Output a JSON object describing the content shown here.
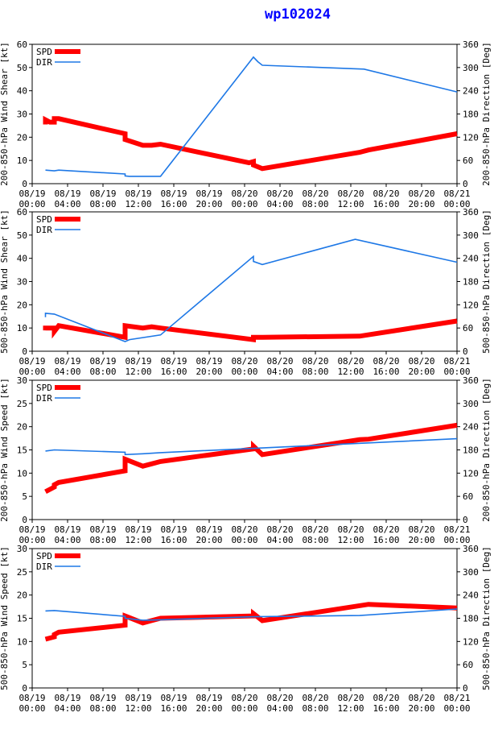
{
  "title": "wp102024",
  "x_ticks": [
    [
      "08/19",
      "00:00"
    ],
    [
      "08/19",
      "04:00"
    ],
    [
      "08/19",
      "08:00"
    ],
    [
      "08/19",
      "12:00"
    ],
    [
      "08/19",
      "16:00"
    ],
    [
      "08/19",
      "20:00"
    ],
    [
      "08/20",
      "00:00"
    ],
    [
      "08/20",
      "04:00"
    ],
    [
      "08/20",
      "08:00"
    ],
    [
      "08/20",
      "12:00"
    ],
    [
      "08/20",
      "16:00"
    ],
    [
      "08/20",
      "20:00"
    ],
    [
      "08/21",
      "00:00"
    ]
  ],
  "colors": {
    "spd": "#ff0000",
    "dir": "#1e78e6",
    "title": "#0000ff"
  },
  "chart_data": [
    {
      "type": "line",
      "ylabel_left": "200-850-hPa Wind Shear [kt]",
      "ylabel_right": "200-850-hPa Direction [Deg]",
      "ylim_left": [
        0,
        60
      ],
      "yticks_left": [
        0,
        10,
        20,
        30,
        40,
        50,
        60
      ],
      "ylim_right": [
        0,
        360
      ],
      "yticks_right": [
        0,
        60,
        120,
        180,
        240,
        300,
        360
      ],
      "xlim_hours": [
        0,
        48
      ],
      "legend": [
        "SPD",
        "DIR"
      ],
      "series": [
        {
          "name": "SPD",
          "axis": "left",
          "x": [
            1.5,
            1.5,
            2.0,
            2.5,
            2.5,
            3.0,
            10.5,
            10.5,
            12.5,
            13.5,
            14.5,
            24.5,
            25.0,
            25.0,
            26.0,
            37.0,
            38.0,
            48.0
          ],
          "y": [
            25.5,
            27.5,
            26.5,
            26.5,
            28,
            28,
            21.5,
            19,
            16.5,
            16.5,
            17,
            9,
            9.5,
            8,
            6.5,
            13.5,
            14.5,
            21.5
          ]
        },
        {
          "name": "DIR",
          "axis": "right",
          "x": [
            1.5,
            2.5,
            3.0,
            10.5,
            10.5,
            11.0,
            14.5,
            25.0,
            25.5,
            26.0,
            37.5,
            48.0
          ],
          "y": [
            35,
            33,
            35,
            25,
            20,
            19,
            19,
            327,
            315,
            306,
            296,
            237
          ]
        }
      ]
    },
    {
      "type": "line",
      "ylabel_left": "500-850-hPa Wind Shear [kt]",
      "ylabel_right": "500-850-hPa Direction [Deg]",
      "ylim_left": [
        0,
        60
      ],
      "yticks_left": [
        0,
        10,
        20,
        30,
        40,
        50,
        60
      ],
      "ylim_right": [
        0,
        360
      ],
      "yticks_right": [
        0,
        60,
        120,
        180,
        240,
        300,
        360
      ],
      "xlim_hours": [
        0,
        48
      ],
      "legend": [
        "SPD",
        "DIR"
      ],
      "series": [
        {
          "name": "SPD",
          "axis": "left",
          "x": [
            1.5,
            1.5,
            2.5,
            2.5,
            3.0,
            10.5,
            10.5,
            12.5,
            13.5,
            14.5,
            25.0,
            25.0,
            26.0,
            37.0,
            48.0
          ],
          "y": [
            9,
            10,
            10,
            8.5,
            11,
            6,
            11,
            10,
            10.5,
            10,
            5,
            6,
            6,
            6.5,
            13
          ]
        },
        {
          "name": "DIR",
          "axis": "right",
          "x": [
            1.5,
            1.5,
            2.5,
            10.5,
            11.0,
            14.5,
            25.0,
            25.0,
            26.0,
            36.5,
            48.0
          ],
          "y": [
            88,
            98,
            96,
            25,
            30,
            42,
            245,
            232,
            224,
            289,
            230
          ]
        }
      ]
    },
    {
      "type": "line",
      "ylabel_left": "200-850-hPa Wind Speed [kt]",
      "ylabel_right": "200-850-hPa Direction [Deg]",
      "ylim_left": [
        0,
        30
      ],
      "yticks_left": [
        0,
        5,
        10,
        15,
        20,
        25,
        30
      ],
      "ylim_right": [
        0,
        360
      ],
      "yticks_right": [
        0,
        60,
        120,
        180,
        240,
        300,
        360
      ],
      "xlim_hours": [
        0,
        48
      ],
      "legend": [
        "SPD",
        "DIR"
      ],
      "series": [
        {
          "name": "SPD",
          "axis": "left",
          "x": [
            1.5,
            2.5,
            2.5,
            3.0,
            10.5,
            10.5,
            12.5,
            13.5,
            14.5,
            25.0,
            25.0,
            26.0,
            37.0,
            38.0,
            48.0
          ],
          "y": [
            6,
            7,
            7.5,
            8,
            10.5,
            13,
            11.5,
            12,
            12.5,
            15.2,
            15.8,
            14,
            17.2,
            17.3,
            20.3
          ]
        },
        {
          "name": "DIR",
          "axis": "right",
          "x": [
            1.5,
            2.5,
            10.5,
            10.5,
            12.5,
            14.5,
            25.0,
            48.0
          ],
          "y": [
            177,
            180,
            174,
            168,
            170,
            173,
            184,
            209
          ]
        }
      ]
    },
    {
      "type": "line",
      "ylabel_left": "500-850-hPa Wind Speed [kt]",
      "ylabel_right": "500-850-hPa Direction [Deg]",
      "ylim_left": [
        0,
        30
      ],
      "yticks_left": [
        0,
        5,
        10,
        15,
        20,
        25,
        30
      ],
      "ylim_right": [
        0,
        360
      ],
      "yticks_right": [
        0,
        60,
        120,
        180,
        240,
        300,
        360
      ],
      "xlim_hours": [
        0,
        48
      ],
      "legend": [
        "SPD",
        "DIR"
      ],
      "series": [
        {
          "name": "SPD",
          "axis": "left",
          "x": [
            1.5,
            2.5,
            2.5,
            3.0,
            10.5,
            10.5,
            12.5,
            13.5,
            14.5,
            25.0,
            25.0,
            26.0,
            38.0,
            48.0
          ],
          "y": [
            10.5,
            11,
            11.5,
            12,
            13.5,
            15.5,
            14,
            14.5,
            15,
            15.5,
            16,
            14.5,
            18,
            17.2
          ]
        },
        {
          "name": "DIR",
          "axis": "right",
          "x": [
            1.5,
            2.5,
            10.5,
            10.5,
            12.5,
            14.5,
            25.0,
            37.0,
            48.0
          ],
          "y": [
            199,
            200,
            185,
            180,
            175,
            176,
            184,
            187,
            204
          ]
        }
      ]
    }
  ]
}
